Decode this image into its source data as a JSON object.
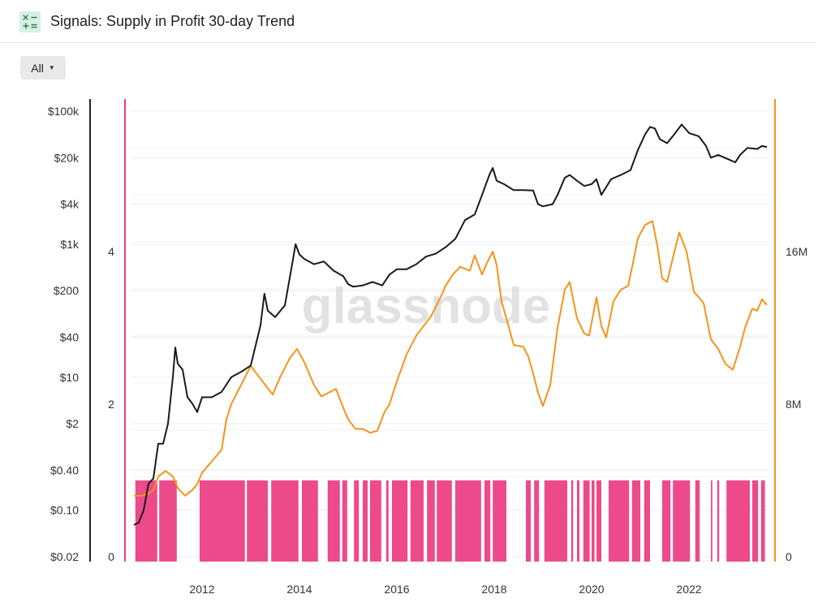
{
  "header": {
    "title": "Signals: Supply in Profit 30-day Trend",
    "icon": "calculator-icon"
  },
  "controls": {
    "range_label": "All"
  },
  "watermark": "glassnode",
  "colors": {
    "price": "#1a1a1a",
    "supply": "#f7931a",
    "signal": "#ec4a8b",
    "signal_axis": "#e0407f"
  },
  "chart_data": {
    "type": "line",
    "x_ticks": [
      "2012",
      "2014",
      "2016",
      "2018",
      "2020",
      "2022"
    ],
    "x_tick_values": [
      2012,
      2014,
      2016,
      2018,
      2020,
      2022
    ],
    "xlim": [
      2010.55,
      2023.65
    ],
    "axes": {
      "price": {
        "scale": "log",
        "ticks": [
          "$100k",
          "$20k",
          "$4k",
          "$1k",
          "$200",
          "$40",
          "$10",
          "$2",
          "$0.40",
          "$0.10",
          "$0.02"
        ],
        "tick_values": [
          100000,
          20000,
          4000,
          1000,
          200,
          40,
          10,
          2,
          0.4,
          0.1,
          0.02
        ]
      },
      "signal": {
        "ticks": [
          "4",
          "2",
          "0"
        ],
        "tick_values": [
          4,
          2,
          0
        ]
      },
      "supply": {
        "ticks": [
          "16M",
          "8M",
          "0"
        ],
        "tick_values": [
          16000000,
          8000000,
          0
        ]
      }
    },
    "grid": true,
    "series": [
      {
        "axis": "price",
        "points": [
          [
            2010.6,
            0.06
          ],
          [
            2010.7,
            0.065
          ],
          [
            2010.8,
            0.1
          ],
          [
            2010.9,
            0.25
          ],
          [
            2011.0,
            0.3
          ],
          [
            2011.1,
            1
          ],
          [
            2011.2,
            1
          ],
          [
            2011.3,
            2
          ],
          [
            2011.4,
            10
          ],
          [
            2011.45,
            28
          ],
          [
            2011.5,
            16
          ],
          [
            2011.6,
            13
          ],
          [
            2011.7,
            5
          ],
          [
            2011.8,
            4
          ],
          [
            2011.9,
            3
          ],
          [
            2012.0,
            5
          ],
          [
            2012.2,
            5
          ],
          [
            2012.4,
            6
          ],
          [
            2012.6,
            10
          ],
          [
            2012.8,
            12
          ],
          [
            2013.0,
            15
          ],
          [
            2013.2,
            60
          ],
          [
            2013.28,
            180
          ],
          [
            2013.35,
            100
          ],
          [
            2013.5,
            80
          ],
          [
            2013.7,
            120
          ],
          [
            2013.85,
            500
          ],
          [
            2013.92,
            1000
          ],
          [
            2014.0,
            700
          ],
          [
            2014.1,
            600
          ],
          [
            2014.3,
            500
          ],
          [
            2014.5,
            550
          ],
          [
            2014.7,
            400
          ],
          [
            2014.9,
            330
          ],
          [
            2015.0,
            250
          ],
          [
            2015.1,
            230
          ],
          [
            2015.3,
            240
          ],
          [
            2015.5,
            270
          ],
          [
            2015.7,
            240
          ],
          [
            2015.85,
            350
          ],
          [
            2016.0,
            420
          ],
          [
            2016.2,
            420
          ],
          [
            2016.4,
            500
          ],
          [
            2016.6,
            650
          ],
          [
            2016.8,
            720
          ],
          [
            2017.0,
            900
          ],
          [
            2017.2,
            1200
          ],
          [
            2017.4,
            2300
          ],
          [
            2017.6,
            2800
          ],
          [
            2017.75,
            5500
          ],
          [
            2017.9,
            11000
          ],
          [
            2017.97,
            14000
          ],
          [
            2018.05,
            9000
          ],
          [
            2018.2,
            8000
          ],
          [
            2018.4,
            6500
          ],
          [
            2018.6,
            6500
          ],
          [
            2018.8,
            6400
          ],
          [
            2018.9,
            4000
          ],
          [
            2019.0,
            3700
          ],
          [
            2019.2,
            4000
          ],
          [
            2019.3,
            5500
          ],
          [
            2019.45,
            10000
          ],
          [
            2019.55,
            11000
          ],
          [
            2019.7,
            9000
          ],
          [
            2019.85,
            7500
          ],
          [
            2020.0,
            8000
          ],
          [
            2020.1,
            9500
          ],
          [
            2020.2,
            5500
          ],
          [
            2020.4,
            9500
          ],
          [
            2020.6,
            11000
          ],
          [
            2020.8,
            13000
          ],
          [
            2020.95,
            26000
          ],
          [
            2021.1,
            45000
          ],
          [
            2021.2,
            58000
          ],
          [
            2021.3,
            55000
          ],
          [
            2021.4,
            38000
          ],
          [
            2021.55,
            33000
          ],
          [
            2021.7,
            45000
          ],
          [
            2021.85,
            63000
          ],
          [
            2022.0,
            47000
          ],
          [
            2022.2,
            42000
          ],
          [
            2022.35,
            30000
          ],
          [
            2022.45,
            20000
          ],
          [
            2022.6,
            22000
          ],
          [
            2022.8,
            19000
          ],
          [
            2022.95,
            17000
          ],
          [
            2023.05,
            22000
          ],
          [
            2023.2,
            28000
          ],
          [
            2023.4,
            27000
          ],
          [
            2023.5,
            30000
          ],
          [
            2023.6,
            29000
          ]
        ]
      },
      {
        "axis": "supply",
        "points": [
          [
            2010.6,
            3.2
          ],
          [
            2010.75,
            3.2
          ],
          [
            2010.9,
            3.3
          ],
          [
            2011.0,
            3.5
          ],
          [
            2011.1,
            4.2
          ],
          [
            2011.25,
            4.5
          ],
          [
            2011.4,
            4.2
          ],
          [
            2011.5,
            3.6
          ],
          [
            2011.65,
            3.2
          ],
          [
            2011.8,
            3.5
          ],
          [
            2011.9,
            3.8
          ],
          [
            2012.0,
            4.4
          ],
          [
            2012.2,
            5.0
          ],
          [
            2012.4,
            5.6
          ],
          [
            2012.5,
            7.2
          ],
          [
            2012.6,
            8.0
          ],
          [
            2012.8,
            9.0
          ],
          [
            2013.0,
            10.0
          ],
          [
            2013.15,
            9.5
          ],
          [
            2013.3,
            9.0
          ],
          [
            2013.45,
            8.5
          ],
          [
            2013.6,
            9.4
          ],
          [
            2013.8,
            10.4
          ],
          [
            2013.95,
            10.9
          ],
          [
            2014.1,
            10.2
          ],
          [
            2014.3,
            9.0
          ],
          [
            2014.45,
            8.4
          ],
          [
            2014.6,
            8.6
          ],
          [
            2014.75,
            8.8
          ],
          [
            2014.9,
            7.8
          ],
          [
            2015.0,
            7.2
          ],
          [
            2015.15,
            6.7
          ],
          [
            2015.3,
            6.7
          ],
          [
            2015.45,
            6.5
          ],
          [
            2015.6,
            6.6
          ],
          [
            2015.75,
            7.6
          ],
          [
            2015.85,
            8.0
          ],
          [
            2016.0,
            9.2
          ],
          [
            2016.2,
            10.6
          ],
          [
            2016.4,
            11.6
          ],
          [
            2016.55,
            12.1
          ],
          [
            2016.7,
            12.6
          ],
          [
            2016.9,
            13.6
          ],
          [
            2017.0,
            14.2
          ],
          [
            2017.15,
            14.8
          ],
          [
            2017.3,
            15.2
          ],
          [
            2017.5,
            15.0
          ],
          [
            2017.6,
            15.8
          ],
          [
            2017.75,
            14.8
          ],
          [
            2017.85,
            15.4
          ],
          [
            2017.97,
            16.0
          ],
          [
            2018.05,
            15.3
          ],
          [
            2018.15,
            13.4
          ],
          [
            2018.25,
            12.5
          ],
          [
            2018.4,
            11.1
          ],
          [
            2018.6,
            11.0
          ],
          [
            2018.7,
            10.5
          ],
          [
            2018.8,
            9.6
          ],
          [
            2018.9,
            8.6
          ],
          [
            2019.0,
            7.9
          ],
          [
            2019.15,
            9.0
          ],
          [
            2019.3,
            12.0
          ],
          [
            2019.45,
            14.0
          ],
          [
            2019.55,
            14.4
          ],
          [
            2019.7,
            12.5
          ],
          [
            2019.85,
            11.7
          ],
          [
            2019.95,
            11.6
          ],
          [
            2020.1,
            13.6
          ],
          [
            2020.2,
            12.1
          ],
          [
            2020.3,
            11.5
          ],
          [
            2020.45,
            13.4
          ],
          [
            2020.6,
            14.0
          ],
          [
            2020.75,
            14.2
          ],
          [
            2020.85,
            15.4
          ],
          [
            2020.95,
            16.7
          ],
          [
            2021.1,
            17.4
          ],
          [
            2021.25,
            17.6
          ],
          [
            2021.35,
            16.3
          ],
          [
            2021.45,
            14.6
          ],
          [
            2021.55,
            14.4
          ],
          [
            2021.7,
            16.0
          ],
          [
            2021.8,
            17.0
          ],
          [
            2021.95,
            16.0
          ],
          [
            2022.1,
            13.9
          ],
          [
            2022.3,
            13.3
          ],
          [
            2022.45,
            11.4
          ],
          [
            2022.6,
            10.9
          ],
          [
            2022.75,
            10.1
          ],
          [
            2022.9,
            9.8
          ],
          [
            2023.05,
            11.0
          ],
          [
            2023.15,
            12.0
          ],
          [
            2023.3,
            13.0
          ],
          [
            2023.4,
            12.9
          ],
          [
            2023.5,
            13.5
          ],
          [
            2023.6,
            13.2
          ]
        ]
      },
      {
        "axis": "signal",
        "type": "bar",
        "value": 1,
        "intervals": [
          [
            2010.63,
            2011.08
          ],
          [
            2011.12,
            2011.48
          ],
          [
            2011.95,
            2012.88
          ],
          [
            2012.92,
            2013.35
          ],
          [
            2013.42,
            2013.98
          ],
          [
            2014.05,
            2014.38
          ],
          [
            2014.58,
            2014.83
          ],
          [
            2014.88,
            2014.98
          ],
          [
            2015.12,
            2015.22
          ],
          [
            2015.3,
            2015.4
          ],
          [
            2015.45,
            2015.68
          ],
          [
            2015.78,
            2015.83
          ],
          [
            2015.9,
            2016.22
          ],
          [
            2016.28,
            2016.55
          ],
          [
            2016.62,
            2016.78
          ],
          [
            2016.82,
            2017.13
          ],
          [
            2017.2,
            2017.73
          ],
          [
            2017.8,
            2017.92
          ],
          [
            2017.97,
            2018.25
          ],
          [
            2018.65,
            2018.75
          ],
          [
            2018.82,
            2018.92
          ],
          [
            2019.03,
            2019.5
          ],
          [
            2019.58,
            2019.62
          ],
          [
            2019.7,
            2019.75
          ],
          [
            2019.83,
            2019.96
          ],
          [
            2020.0,
            2020.06
          ],
          [
            2020.1,
            2020.2
          ],
          [
            2020.35,
            2020.77
          ],
          [
            2020.83,
            2021.0
          ],
          [
            2021.08,
            2021.2
          ],
          [
            2021.45,
            2021.62
          ],
          [
            2021.67,
            2022.02
          ],
          [
            2022.13,
            2022.22
          ],
          [
            2022.45,
            2022.48
          ],
          [
            2022.58,
            2022.62
          ],
          [
            2022.77,
            2023.25
          ],
          [
            2023.3,
            2023.42
          ],
          [
            2023.48,
            2023.56
          ]
        ]
      }
    ]
  }
}
